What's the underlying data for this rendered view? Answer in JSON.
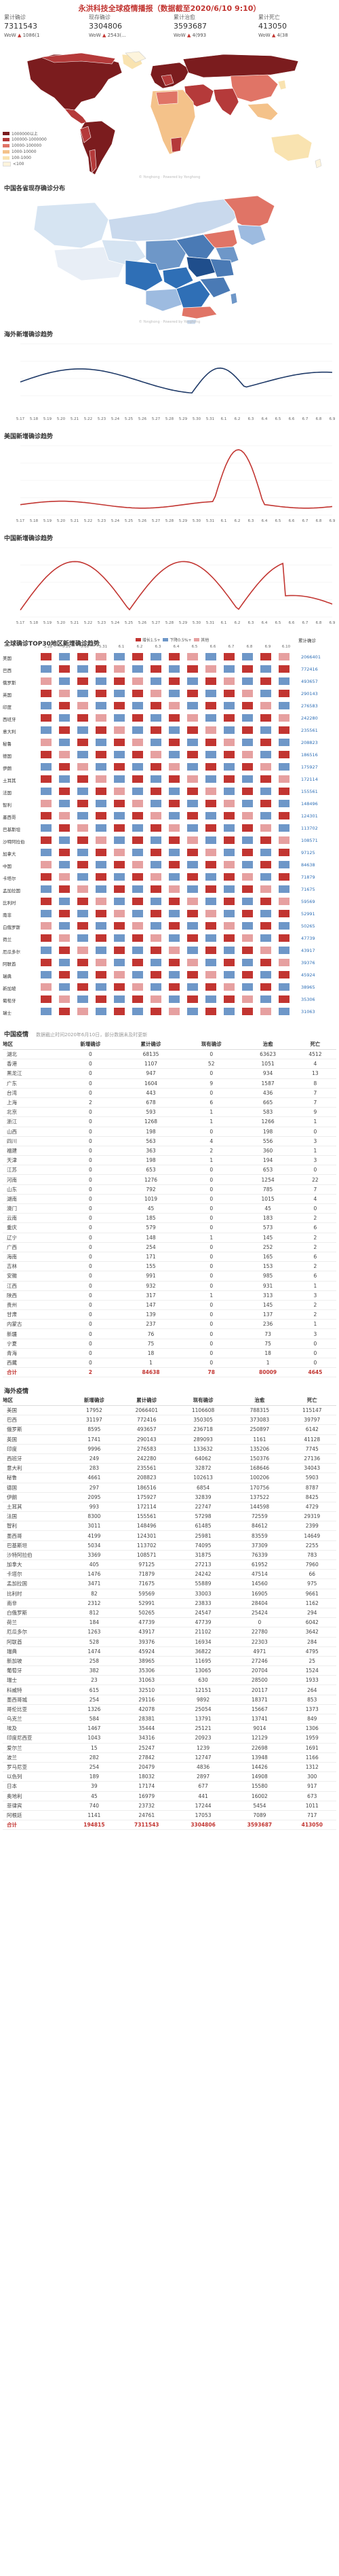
{
  "page_title": "永洪科技全球疫情播报（数据截至2020/6/10 9:10）",
  "stats": [
    {
      "label": "累计确诊",
      "value": "7311543",
      "wow_label": "WoW",
      "wow_value": "1086(1"
    },
    {
      "label": "现存确诊",
      "value": "3304806",
      "wow_label": "WoW",
      "wow_value": "2543(..."
    },
    {
      "label": "累计治愈",
      "value": "3593687",
      "wow_label": "WoW",
      "wow_value": "4(993"
    },
    {
      "label": "累计死亡",
      "value": "413050",
      "wow_label": "WoW",
      "wow_value": "4(38"
    }
  ],
  "world_map": {
    "watermark": "© Yonghong  ·  Powered by Yonghong",
    "legend": [
      {
        "label": "1000000以上",
        "color": "#7b1c1e"
      },
      {
        "label": "100000-1000000",
        "color": "#b53a3a"
      },
      {
        "label": "10000-100000",
        "color": "#e07466"
      },
      {
        "label": "1000-10000",
        "color": "#f4c28a"
      },
      {
        "label": "100-1000",
        "color": "#f9e3b0"
      },
      {
        "label": "<100",
        "color": "#fdf4dc"
      }
    ]
  },
  "china_map": {
    "title": "中国各省现存确诊分布",
    "watermark": "© Yonghong  ·  Powered by Yonghong"
  },
  "overseas_chart": {
    "title": "海外新增确诊趋势",
    "labels": [
      "5.17",
      "5.18",
      "5.19",
      "5.20",
      "5.21",
      "5.22",
      "5.23",
      "5.24",
      "5.25",
      "5.26",
      "5.27",
      "5.28",
      "5.29",
      "5.30",
      "5.31",
      "6.1",
      "6.2",
      "6.3",
      "6.4",
      "6.5",
      "6.6",
      "6.7",
      "6.8",
      "6.9"
    ]
  },
  "us_chart": {
    "title": "美国新增确诊趋势",
    "labels": [
      "5.17",
      "5.18",
      "5.19",
      "5.20",
      "5.21",
      "5.22",
      "5.23",
      "5.24",
      "5.25",
      "5.26",
      "5.27",
      "5.28",
      "5.29",
      "5.30",
      "5.31",
      "6.1",
      "6.2",
      "6.3",
      "6.4",
      "6.5",
      "6.6",
      "6.7",
      "6.8",
      "6.9"
    ]
  },
  "china_chart": {
    "title": "中国新增确诊趋势",
    "labels": [
      "5.17",
      "5.18",
      "5.19",
      "5.20",
      "5.21",
      "5.22",
      "5.23",
      "5.24",
      "5.25",
      "5.26",
      "5.27",
      "5.28",
      "5.29",
      "5.30",
      "5.31",
      "6.1",
      "6.2",
      "6.3",
      "6.4",
      "6.5",
      "6.6",
      "6.7",
      "6.8",
      "6.9"
    ]
  },
  "heatmap": {
    "title": "全球确诊TOP30地区新增确诊趋势",
    "legend": [
      "增长1.5+",
      "下降0.5%+",
      "其他"
    ],
    "legend_colors": [
      "#c23531",
      "#6e97c8",
      "#e6a0a0"
    ],
    "total_header": "累计确诊",
    "dates": [
      "5.28",
      "5.29",
      "5.30",
      "5.31",
      "6.1",
      "6.2",
      "6.3",
      "6.4",
      "6.5",
      "6.6",
      "6.7",
      "6.8",
      "6.9",
      "6.10"
    ],
    "rows": [
      {
        "name": "美国",
        "total": "2066401"
      },
      {
        "name": "巴西",
        "total": "772416"
      },
      {
        "name": "俄罗斯",
        "total": "493657"
      },
      {
        "name": "英国",
        "total": "290143"
      },
      {
        "name": "印度",
        "total": "276583"
      },
      {
        "name": "西班牙",
        "total": "242280"
      },
      {
        "name": "意大利",
        "total": "235561"
      },
      {
        "name": "秘鲁",
        "total": "208823"
      },
      {
        "name": "德国",
        "total": "186516"
      },
      {
        "name": "伊朗",
        "total": "175927"
      },
      {
        "name": "土耳其",
        "total": "172114"
      },
      {
        "name": "法国",
        "total": "155561"
      },
      {
        "name": "智利",
        "total": "148496"
      },
      {
        "name": "墨西哥",
        "total": "124301"
      },
      {
        "name": "巴基斯坦",
        "total": "113702"
      },
      {
        "name": "沙特阿拉伯",
        "total": "108571"
      },
      {
        "name": "加拿大",
        "total": "97125"
      },
      {
        "name": "中国",
        "total": "84638"
      },
      {
        "name": "卡塔尔",
        "total": "71879"
      },
      {
        "name": "孟加拉国",
        "total": "71675"
      },
      {
        "name": "比利时",
        "total": "59569"
      },
      {
        "name": "南非",
        "total": "52991"
      },
      {
        "name": "白俄罗斯",
        "total": "50265"
      },
      {
        "name": "荷兰",
        "total": "47739"
      },
      {
        "name": "厄瓜多尔",
        "total": "43917"
      },
      {
        "name": "阿联酋",
        "total": "39376"
      },
      {
        "name": "瑞典",
        "total": "45924"
      },
      {
        "name": "新加坡",
        "total": "38965"
      },
      {
        "name": "葡萄牙",
        "total": "35306"
      },
      {
        "name": "瑞士",
        "total": "31063"
      }
    ]
  },
  "china_table": {
    "title": "中国疫情",
    "note": "数据截止时间2020年6月10日，部分数据未及时更新",
    "headers": [
      "地区",
      "新增确诊",
      "累计确诊",
      "现有确诊",
      "治愈",
      "死亡"
    ],
    "rows": [
      [
        "湖北",
        "0",
        "68135",
        "0",
        "63623",
        "4512"
      ],
      [
        "香港",
        "0",
        "1107",
        "52",
        "1051",
        "4"
      ],
      [
        "黑龙江",
        "0",
        "947",
        "0",
        "934",
        "13"
      ],
      [
        "广东",
        "0",
        "1604",
        "9",
        "1587",
        "8"
      ],
      [
        "台湾",
        "0",
        "443",
        "0",
        "436",
        "7"
      ],
      [
        "上海",
        "2",
        "678",
        "6",
        "665",
        "7"
      ],
      [
        "北京",
        "0",
        "593",
        "1",
        "583",
        "9"
      ],
      [
        "浙江",
        "0",
        "1268",
        "1",
        "1266",
        "1"
      ],
      [
        "山西",
        "0",
        "198",
        "0",
        "198",
        "0"
      ],
      [
        "四川",
        "0",
        "563",
        "4",
        "556",
        "3"
      ],
      [
        "福建",
        "0",
        "363",
        "2",
        "360",
        "1"
      ],
      [
        "天津",
        "0",
        "198",
        "1",
        "194",
        "3"
      ],
      [
        "江苏",
        "0",
        "653",
        "0",
        "653",
        "0"
      ],
      [
        "河南",
        "0",
        "1276",
        "0",
        "1254",
        "22"
      ],
      [
        "山东",
        "0",
        "792",
        "0",
        "785",
        "7"
      ],
      [
        "湖南",
        "0",
        "1019",
        "0",
        "1015",
        "4"
      ],
      [
        "澳门",
        "0",
        "45",
        "0",
        "45",
        "0"
      ],
      [
        "云南",
        "0",
        "185",
        "0",
        "183",
        "2"
      ],
      [
        "重庆",
        "0",
        "579",
        "0",
        "573",
        "6"
      ],
      [
        "辽宁",
        "0",
        "148",
        "1",
        "145",
        "2"
      ],
      [
        "广西",
        "0",
        "254",
        "0",
        "252",
        "2"
      ],
      [
        "海南",
        "0",
        "171",
        "0",
        "165",
        "6"
      ],
      [
        "吉林",
        "0",
        "155",
        "0",
        "153",
        "2"
      ],
      [
        "安徽",
        "0",
        "991",
        "0",
        "985",
        "6"
      ],
      [
        "江西",
        "0",
        "932",
        "0",
        "931",
        "1"
      ],
      [
        "陕西",
        "0",
        "317",
        "1",
        "313",
        "3"
      ],
      [
        "贵州",
        "0",
        "147",
        "0",
        "145",
        "2"
      ],
      [
        "甘肃",
        "0",
        "139",
        "0",
        "137",
        "2"
      ],
      [
        "内蒙古",
        "0",
        "237",
        "0",
        "236",
        "1"
      ],
      [
        "新疆",
        "0",
        "76",
        "0",
        "73",
        "3"
      ],
      [
        "宁夏",
        "0",
        "75",
        "0",
        "75",
        "0"
      ],
      [
        "青海",
        "0",
        "18",
        "0",
        "18",
        "0"
      ],
      [
        "西藏",
        "0",
        "1",
        "0",
        "1",
        "0"
      ],
      [
        "合计",
        "2",
        "84638",
        "78",
        "80009",
        "4645"
      ]
    ]
  },
  "overseas_table": {
    "title": "海外疫情",
    "headers": [
      "地区",
      "新增确诊",
      "累计确诊",
      "现有确诊",
      "治愈",
      "死亡"
    ],
    "rows": [
      [
        "美国",
        "17952",
        "2066401",
        "1106608",
        "788315",
        "115147"
      ],
      [
        "巴西",
        "31197",
        "772416",
        "350305",
        "373083",
        "39797"
      ],
      [
        "俄罗斯",
        "8595",
        "493657",
        "236718",
        "250897",
        "6142"
      ],
      [
        "英国",
        "1741",
        "290143",
        "289093",
        "1161",
        "41128"
      ],
      [
        "印度",
        "9996",
        "276583",
        "133632",
        "135206",
        "7745"
      ],
      [
        "西班牙",
        "249",
        "242280",
        "64062",
        "150376",
        "27136"
      ],
      [
        "意大利",
        "283",
        "235561",
        "32872",
        "168646",
        "34043"
      ],
      [
        "秘鲁",
        "4661",
        "208823",
        "102613",
        "100206",
        "5903"
      ],
      [
        "德国",
        "297",
        "186516",
        "6854",
        "170756",
        "8787"
      ],
      [
        "伊朗",
        "2095",
        "175927",
        "32839",
        "137522",
        "8425"
      ],
      [
        "土耳其",
        "993",
        "172114",
        "22747",
        "144598",
        "4729"
      ],
      [
        "法国",
        "8300",
        "155561",
        "57298",
        "72559",
        "29319"
      ],
      [
        "智利",
        "3011",
        "148496",
        "61485",
        "84612",
        "2399"
      ],
      [
        "墨西哥",
        "4199",
        "124301",
        "25981",
        "83559",
        "14649"
      ],
      [
        "巴基斯坦",
        "5034",
        "113702",
        "74095",
        "37309",
        "2255"
      ],
      [
        "沙特阿拉伯",
        "3369",
        "108571",
        "31875",
        "76339",
        "783"
      ],
      [
        "加拿大",
        "405",
        "97125",
        "27213",
        "61952",
        "7960"
      ],
      [
        "卡塔尔",
        "1476",
        "71879",
        "24242",
        "47514",
        "66"
      ],
      [
        "孟加拉国",
        "3471",
        "71675",
        "55889",
        "14560",
        "975"
      ],
      [
        "比利时",
        "82",
        "59569",
        "33003",
        "16905",
        "9661"
      ],
      [
        "南非",
        "2312",
        "52991",
        "23833",
        "28404",
        "1162"
      ],
      [
        "白俄罗斯",
        "812",
        "50265",
        "24547",
        "25424",
        "294"
      ],
      [
        "荷兰",
        "184",
        "47739",
        "47739",
        "0",
        "6042"
      ],
      [
        "厄瓜多尔",
        "1263",
        "43917",
        "21102",
        "22780",
        "3642"
      ],
      [
        "阿联酋",
        "528",
        "39376",
        "16934",
        "22303",
        "284"
      ],
      [
        "瑞典",
        "1474",
        "45924",
        "36822",
        "4971",
        "4795"
      ],
      [
        "新加坡",
        "258",
        "38965",
        "11695",
        "27246",
        "25"
      ],
      [
        "葡萄牙",
        "382",
        "35306",
        "13065",
        "20704",
        "1524"
      ],
      [
        "瑞士",
        "23",
        "31063",
        "630",
        "28500",
        "1933"
      ],
      [
        "科威特",
        "615",
        "32510",
        "12151",
        "20117",
        "264"
      ],
      [
        "墨西哥城",
        "254",
        "29116",
        "9892",
        "18371",
        "853"
      ],
      [
        "哥伦比亚",
        "1326",
        "42078",
        "25054",
        "15667",
        "1373"
      ],
      [
        "乌克兰",
        "584",
        "28381",
        "13791",
        "13741",
        "849"
      ],
      [
        "埃及",
        "1467",
        "35444",
        "25121",
        "9014",
        "1306"
      ],
      [
        "印度尼西亚",
        "1043",
        "34316",
        "20923",
        "12129",
        "1959"
      ],
      [
        "爱尔兰",
        "15",
        "25247",
        "1239",
        "22698",
        "1691"
      ],
      [
        "波兰",
        "282",
        "27842",
        "12747",
        "13948",
        "1166"
      ],
      [
        "罗马尼亚",
        "254",
        "20479",
        "4836",
        "14426",
        "1312"
      ],
      [
        "以色列",
        "189",
        "18032",
        "2897",
        "14908",
        "300"
      ],
      [
        "日本",
        "39",
        "17174",
        "677",
        "15580",
        "917"
      ],
      [
        "奥地利",
        "45",
        "16979",
        "441",
        "16002",
        "673"
      ],
      [
        "菲律宾",
        "740",
        "23732",
        "17244",
        "5454",
        "1011"
      ],
      [
        "阿根廷",
        "1141",
        "24761",
        "17053",
        "7089",
        "717"
      ],
      [
        "合计",
        "194815",
        "7311543",
        "3304806",
        "3593687",
        "413050"
      ]
    ]
  }
}
